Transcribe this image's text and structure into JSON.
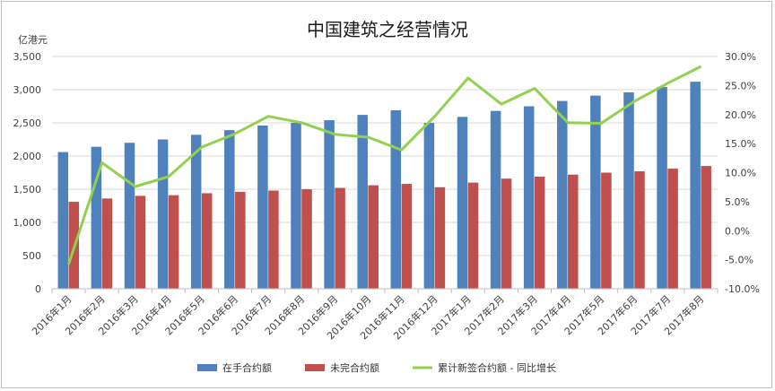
{
  "chart_data": {
    "type": "bar",
    "title": "中国建筑之经营情况",
    "y_left_unit": "亿港元",
    "categories": [
      "2016年1月",
      "2016年2月",
      "2016年3月",
      "2016年4月",
      "2016年5月",
      "2016年6月",
      "2016年7月",
      "2016年8月",
      "2016年9月",
      "2016年10月",
      "2016年11月",
      "2016年12月",
      "2017年1月",
      "2017年2月",
      "2017年3月",
      "2017年4月",
      "2017年5月",
      "2017年6月",
      "2017年7月",
      "2017年8月"
    ],
    "y_left": {
      "min": 0,
      "max": 3500,
      "step": 500,
      "tick_labels": [
        "0",
        "500",
        "1,000",
        "1,500",
        "2,000",
        "2,500",
        "3,000",
        "3,500"
      ]
    },
    "y_right": {
      "min": -10,
      "max": 30,
      "step": 5,
      "tick_labels": [
        "-10.0%",
        "-5.0%",
        "0.0%",
        "5.0%",
        "10.0%",
        "15.0%",
        "20.0%",
        "25.0%",
        "30.0%"
      ]
    },
    "series": [
      {
        "name": "在手合约额",
        "type": "bar",
        "axis": "left",
        "color": "#4f81bd",
        "values": [
          2060,
          2140,
          2200,
          2250,
          2320,
          2390,
          2460,
          2500,
          2540,
          2620,
          2690,
          2500,
          2590,
          2680,
          2750,
          2830,
          2910,
          2960,
          3040,
          3120
        ]
      },
      {
        "name": "未完合约额",
        "type": "bar",
        "axis": "left",
        "color": "#c0504d",
        "values": [
          1310,
          1360,
          1400,
          1410,
          1440,
          1460,
          1480,
          1500,
          1520,
          1560,
          1580,
          1530,
          1600,
          1660,
          1690,
          1720,
          1750,
          1770,
          1810,
          1850
        ]
      },
      {
        "name": "累计新签合约额 - 同比增长",
        "type": "line",
        "axis": "right",
        "color": "#92d050",
        "values": [
          -5.8,
          11.7,
          7.6,
          9.3,
          14.4,
          16.7,
          19.7,
          18.6,
          16.6,
          16.1,
          13.9,
          19.7,
          26.3,
          21.8,
          24.5,
          18.6,
          18.5,
          22.3,
          25.4,
          28.3
        ]
      }
    ],
    "grid": true,
    "legend_position": "bottom"
  }
}
